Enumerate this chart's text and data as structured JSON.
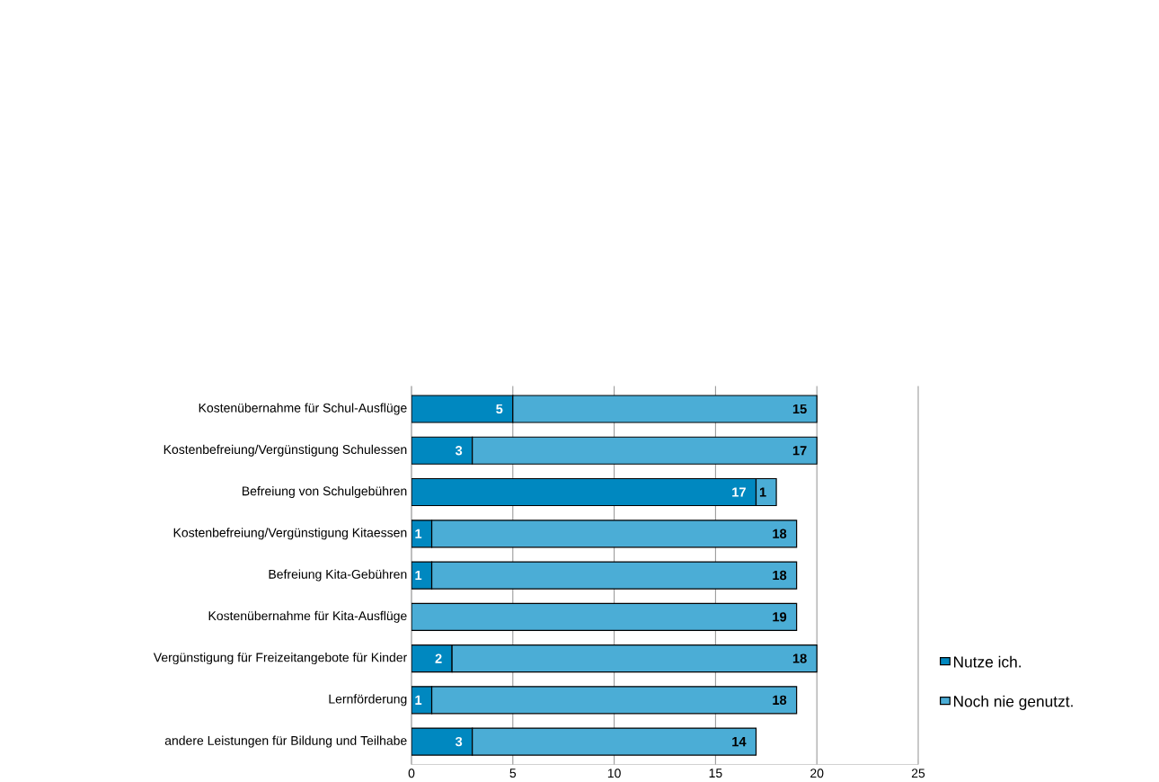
{
  "chart_data": {
    "type": "bar",
    "orientation": "horizontal",
    "stacked": true,
    "categories": [
      "Kostenübernahme für Schul-Ausflüge",
      "Kostenbefreiung/Vergünstigung Schulessen",
      "Befreiung von Schulgebühren",
      "Kostenbefreiung/Vergünstigung Kitaessen",
      "Befreiung Kita-Gebühren",
      "Kostenübernahme für Kita-Ausflüge",
      "Vergünstigung für Freizeitangebote für Kinder",
      "Lernförderung",
      "andere Leistungen für Bildung und Teilhabe"
    ],
    "series": [
      {
        "name": "Nutze ich.",
        "color": "#0088c0",
        "values": [
          5,
          3,
          17,
          1,
          1,
          0,
          2,
          1,
          3
        ],
        "value_labels": [
          "5",
          "3",
          "17",
          "1",
          "1",
          null,
          "2",
          "1",
          "3"
        ]
      },
      {
        "name": "Noch nie genutzt.",
        "color": "#4badd6",
        "values": [
          15,
          17,
          1,
          18,
          18,
          19,
          18,
          18,
          14
        ],
        "value_labels": [
          "15",
          "17",
          "1",
          "18",
          "18",
          "19",
          "18",
          "18",
          "14"
        ]
      }
    ],
    "xlim": [
      0,
      25
    ],
    "xticks": [
      0,
      5,
      10,
      15,
      20,
      25
    ],
    "grid": "x",
    "legend": "right"
  }
}
